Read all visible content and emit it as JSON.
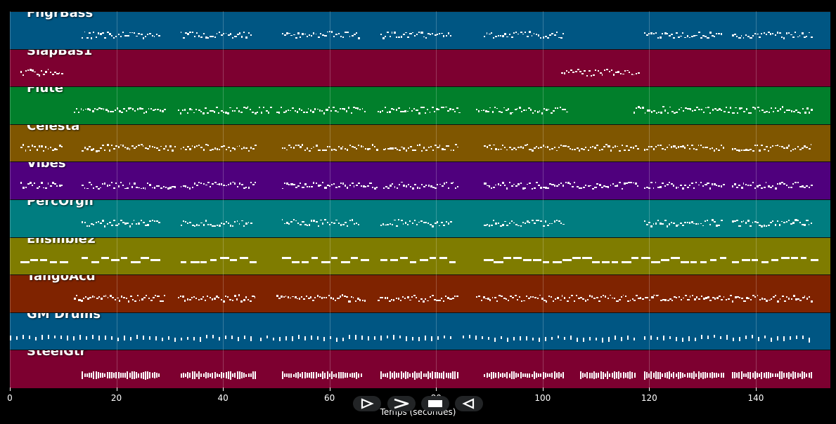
{
  "chart_data": {
    "type": "piano-roll",
    "xlabel": "Temps (secondes)",
    "xlim": [
      0,
      154
    ],
    "x_ticks": [
      "0",
      "20",
      "40",
      "60",
      "80",
      "100",
      "120",
      "140"
    ],
    "tracks": [
      {
        "name": "FngrBass",
        "color": "#005683",
        "segments": [
          [
            13.5,
            28
          ],
          [
            32,
            45.5
          ],
          [
            51,
            65.5
          ],
          [
            69.5,
            83
          ],
          [
            89,
            104
          ],
          [
            119,
            133.5
          ],
          [
            135.5,
            150.5
          ]
        ]
      },
      {
        "name": "SlapBas1",
        "color": "#7d0030",
        "segments": [
          [
            2,
            10
          ],
          [
            103.5,
            118
          ]
        ]
      },
      {
        "name": "Flute",
        "color": "#017f2b",
        "segments": [
          [
            12,
            29
          ],
          [
            31.5,
            49
          ],
          [
            50,
            66.5
          ],
          [
            69,
            84.5
          ],
          [
            87.5,
            104.5
          ],
          [
            117,
            150.5
          ]
        ]
      },
      {
        "name": "Celesta",
        "color": "#7f5600",
        "segments": [
          [
            2,
            10
          ],
          [
            13.5,
            31
          ],
          [
            32,
            46
          ],
          [
            51,
            69
          ],
          [
            70,
            84
          ],
          [
            89,
            118
          ],
          [
            119,
            134
          ],
          [
            135.5,
            150.5
          ]
        ]
      },
      {
        "name": "Vibes",
        "color": "#4f007d",
        "segments": [
          [
            2,
            10
          ],
          [
            13.5,
            31
          ],
          [
            32,
            46
          ],
          [
            51,
            69
          ],
          [
            70,
            84
          ],
          [
            89,
            118
          ],
          [
            119,
            134
          ],
          [
            135.5,
            150.5
          ]
        ]
      },
      {
        "name": "PercOrgn",
        "color": "#007d80",
        "segments": [
          [
            13.5,
            28
          ],
          [
            32,
            45.5
          ],
          [
            51,
            65.5
          ],
          [
            69.5,
            83
          ],
          [
            89,
            104
          ],
          [
            119,
            133.5
          ],
          [
            135.5,
            150.5
          ]
        ]
      },
      {
        "name": "Ensmble2",
        "color": "#7f7c00",
        "segments": [
          [
            2,
            10
          ],
          [
            13.5,
            28
          ],
          [
            32,
            46
          ],
          [
            51,
            66
          ],
          [
            69.5,
            84
          ],
          [
            89,
            134
          ],
          [
            135.5,
            150.5
          ]
        ]
      },
      {
        "name": "TangoAcd",
        "color": "#7f2300",
        "segments": [
          [
            12,
            29
          ],
          [
            31.5,
            46
          ],
          [
            50,
            66.5
          ],
          [
            69,
            84
          ],
          [
            87.5,
            104
          ],
          [
            104.5,
            117
          ],
          [
            117,
            150.5
          ]
        ]
      },
      {
        "name": "GM Drums",
        "color": "#005683",
        "segments": [
          [
            0,
            46
          ],
          [
            47,
            83
          ],
          [
            85,
            117.5
          ],
          [
            119,
            150.5
          ]
        ]
      },
      {
        "name": "SteelGtr",
        "color": "#7d0030",
        "segments": [
          [
            13.5,
            28
          ],
          [
            32,
            46
          ],
          [
            51,
            66
          ],
          [
            69.5,
            84
          ],
          [
            89,
            104
          ],
          [
            107,
            117.5
          ],
          [
            119,
            134
          ],
          [
            135.5,
            150.5
          ]
        ]
      }
    ]
  },
  "controls": [
    {
      "name": "rewind",
      "icon": "rewind-icon"
    },
    {
      "name": "play",
      "icon": "play-icon"
    },
    {
      "name": "stop",
      "icon": "stop-icon"
    },
    {
      "name": "step-back",
      "icon": "step-back-icon"
    }
  ]
}
